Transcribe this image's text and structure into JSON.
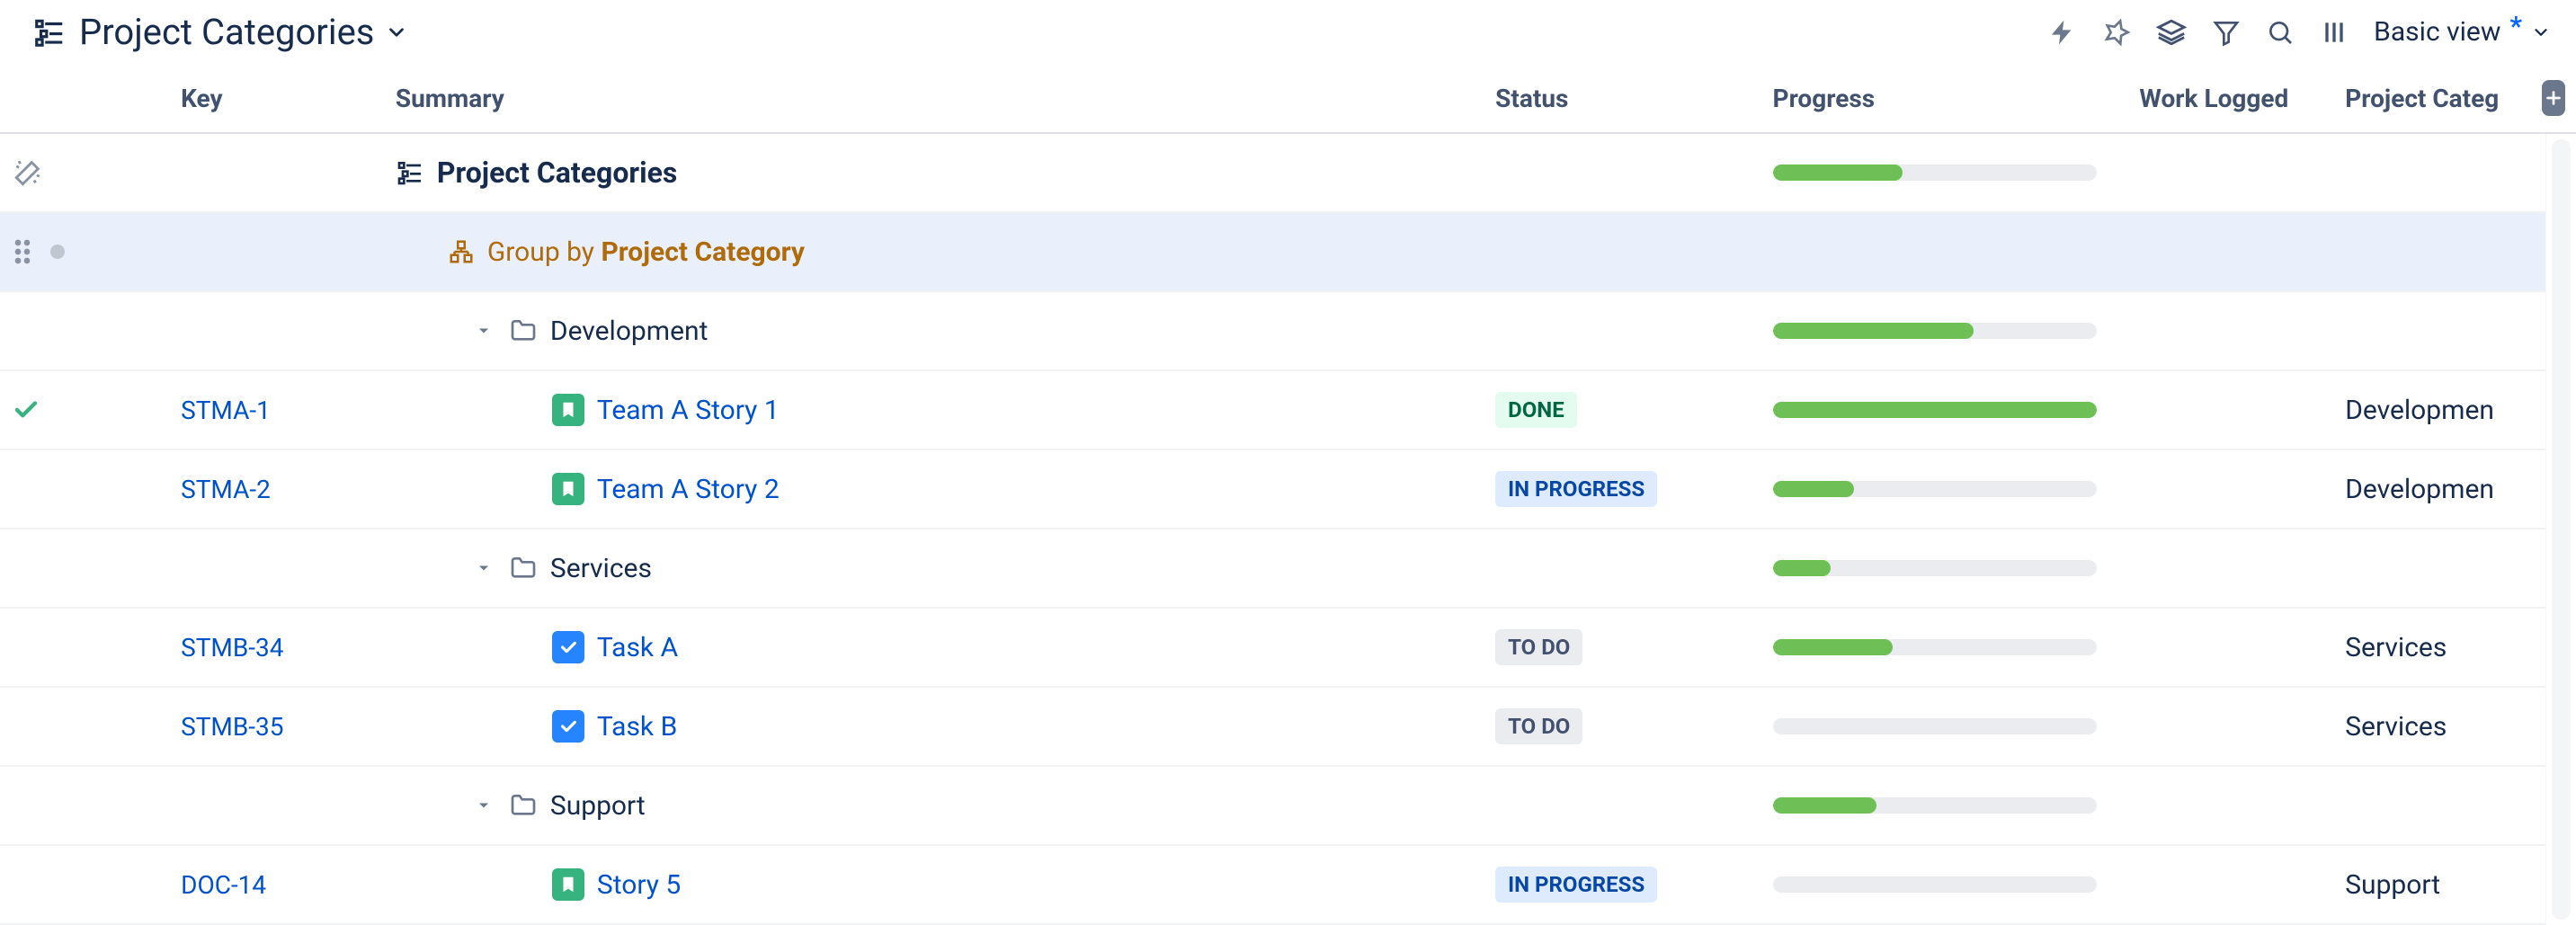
{
  "toolbar": {
    "title": "Project Categories",
    "view_label": "Basic view",
    "view_modified_marker": "*"
  },
  "columns": {
    "key": "Key",
    "summary": "Summary",
    "status": "Status",
    "progress": "Progress",
    "work_logged": "Work Logged",
    "project_category": "Project Categ"
  },
  "status_styles": {
    "DONE": "lz-done",
    "IN PROGRESS": "lz-prog",
    "TO DO": "lz-todo"
  },
  "progress_color": "#6fbf57",
  "progress_track_color": "#ebecf0",
  "rows": [
    {
      "type": "root",
      "left_icon": "wand",
      "summary_icon": "structure",
      "label": "Project Categories",
      "progress_pct": 40,
      "selected": false
    },
    {
      "type": "group",
      "left_icon": "drag-bullet",
      "summary_icon": "group",
      "label_prefix": "Group by ",
      "label_strong": "Project Category",
      "selected": true
    },
    {
      "type": "folder",
      "label": "Development",
      "progress_pct": 62
    },
    {
      "type": "issue",
      "left_icon": "check",
      "key": "STMA-1",
      "issue_type": "story",
      "title": "Team A Story 1",
      "status": "DONE",
      "progress_pct": 100,
      "category": "Developmen"
    },
    {
      "type": "issue",
      "key": "STMA-2",
      "issue_type": "story",
      "title": "Team A Story 2",
      "status": "IN PROGRESS",
      "progress_pct": 25,
      "category": "Developmen"
    },
    {
      "type": "folder",
      "label": "Services",
      "progress_pct": 18
    },
    {
      "type": "issue",
      "key": "STMB-34",
      "issue_type": "task",
      "title": "Task A",
      "status": "TO DO",
      "progress_pct": 37,
      "category": "Services"
    },
    {
      "type": "issue",
      "key": "STMB-35",
      "issue_type": "task",
      "title": "Task B",
      "status": "TO DO",
      "progress_pct": 0,
      "category": "Services"
    },
    {
      "type": "folder",
      "label": "Support",
      "progress_pct": 32
    },
    {
      "type": "issue",
      "key": "DOC-14",
      "issue_type": "story",
      "title": "Story 5",
      "status": "IN PROGRESS",
      "progress_pct": 0,
      "category": "Support"
    }
  ]
}
